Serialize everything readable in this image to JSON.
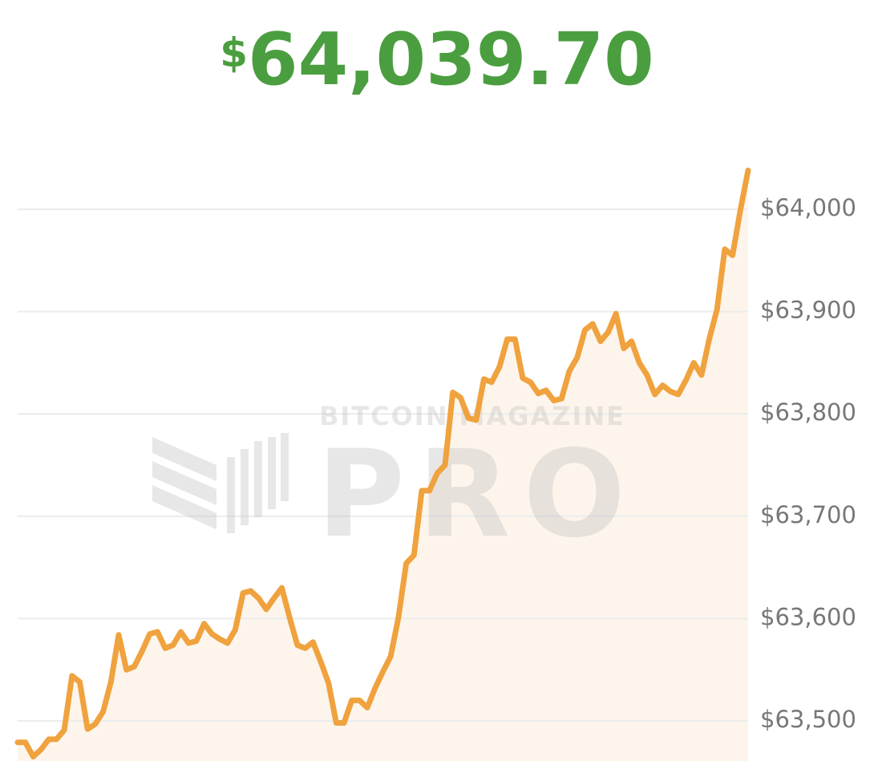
{
  "chart_data": {
    "type": "line",
    "currency": "$",
    "price": "64,039.70",
    "title_color": "#4a9e3f",
    "watermark": "BITCOIN MAGAZINE",
    "watermark_logo": "PRO",
    "color": "#f0a23e",
    "area_color": "#fdf5ec",
    "grid": true,
    "y_axis_side": "right",
    "ylim": [
      63460,
      64050
    ],
    "yticks": [
      {
        "value": 63500,
        "label": "$63,500"
      },
      {
        "value": 63600,
        "label": "$63,600"
      },
      {
        "value": 63700,
        "label": "$63,700"
      },
      {
        "value": 63800,
        "label": "$63,800"
      },
      {
        "value": 63900,
        "label": "$63,900"
      },
      {
        "value": 64000,
        "label": "$64,000"
      }
    ],
    "values": [
      63479,
      63479,
      63465,
      63472,
      63482,
      63482,
      63491,
      63544,
      63538,
      63492,
      63497,
      63509,
      63538,
      63584,
      63550,
      63553,
      63568,
      63585,
      63587,
      63571,
      63574,
      63587,
      63576,
      63578,
      63595,
      63585,
      63580,
      63576,
      63589,
      63625,
      63627,
      63620,
      63609,
      63620,
      63630,
      63601,
      63574,
      63571,
      63577,
      63558,
      63537,
      63498,
      63498,
      63520,
      63520,
      63513,
      63532,
      63548,
      63563,
      63601,
      63654,
      63662,
      63725,
      63725,
      63742,
      63750,
      63821,
      63816,
      63796,
      63794,
      63834,
      63831,
      63846,
      63873,
      63873,
      63835,
      63831,
      63820,
      63823,
      63813,
      63815,
      63842,
      63855,
      63882,
      63888,
      63871,
      63880,
      63898,
      63864,
      63871,
      63850,
      63838,
      63819,
      63828,
      63822,
      63819,
      63833,
      63850,
      63838,
      63873,
      63902,
      63961,
      63955,
      63999,
      64038
    ]
  }
}
